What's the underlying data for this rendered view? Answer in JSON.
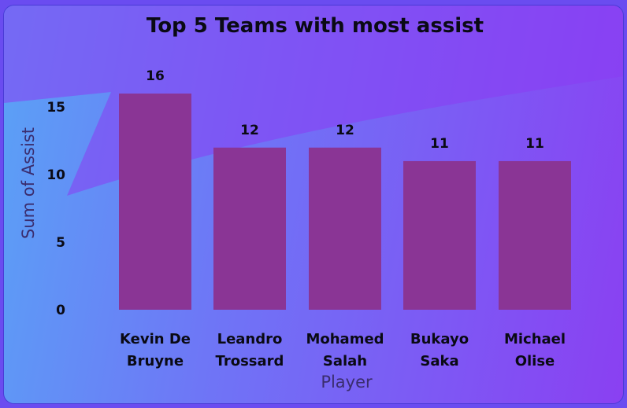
{
  "chart_data": {
    "type": "bar",
    "title": "Top 5 Teams with most assist",
    "xlabel": "Player",
    "ylabel": "Sum of Assist",
    "categories": [
      [
        "Kevin De",
        "Bruyne"
      ],
      [
        "Leandro",
        "Trossard"
      ],
      [
        "Mohamed",
        "Salah"
      ],
      [
        "Bukayo",
        "Saka"
      ],
      [
        "Michael",
        "Olise"
      ]
    ],
    "values": [
      16,
      12,
      12,
      11,
      11
    ],
    "data_labels": [
      "16",
      "12",
      "12",
      "11",
      "11"
    ],
    "y_ticks": [
      "0",
      "5",
      "10",
      "15"
    ],
    "ylim": [
      0,
      16
    ],
    "grid": false,
    "legend": "none",
    "colors": {
      "bar": "#8a3595",
      "background_left": "#5aa2f6",
      "background_right": "#8a40f2",
      "swoosh": "#8c3cf2"
    }
  }
}
